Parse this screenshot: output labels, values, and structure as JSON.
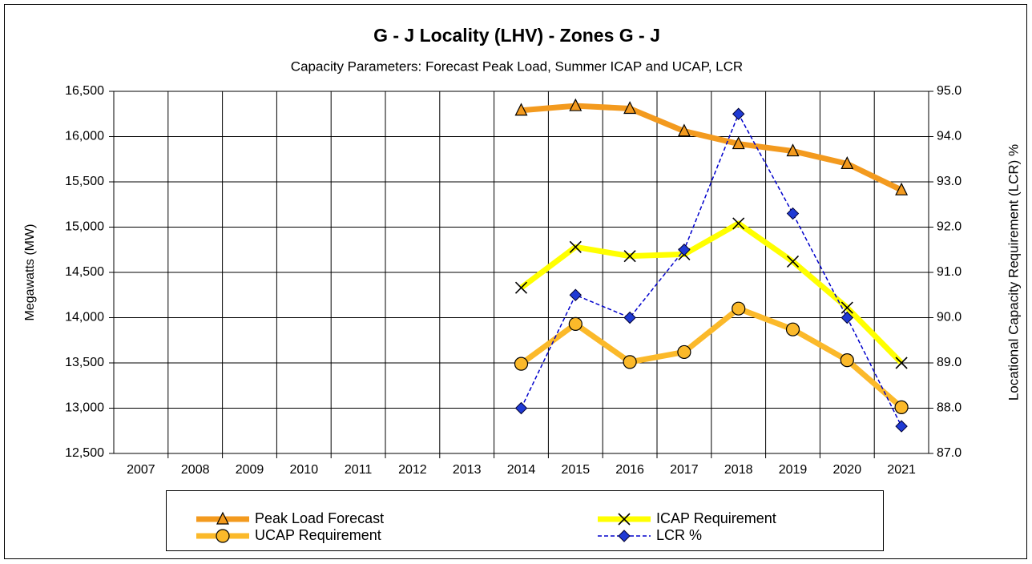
{
  "chart_data": {
    "type": "line",
    "title": "G - J Locality (LHV) - Zones G - J",
    "subtitle": "Capacity Parameters: Forecast Peak Load, Summer ICAP and UCAP, LCR",
    "y_label": "Megawatts (MW)",
    "y2_label": "Locational Capacity Requirement (LCR) %",
    "categories": [
      "2007",
      "2008",
      "2009",
      "2010",
      "2011",
      "2012",
      "2013",
      "2014",
      "2015",
      "2016",
      "2017",
      "2018",
      "2019",
      "2020",
      "2021"
    ],
    "series": [
      {
        "name": "Peak Load Forecast",
        "color": "#f39a1e",
        "marker": "triangle",
        "values": [
          null,
          null,
          null,
          null,
          null,
          null,
          null,
          16290,
          16340,
          16310,
          16060,
          15920,
          15840,
          15700,
          15410
        ]
      },
      {
        "name": "ICAP Requirement",
        "color": "#ffff00",
        "marker": "x",
        "values": [
          null,
          null,
          null,
          null,
          null,
          null,
          null,
          14330,
          14780,
          14680,
          14700,
          15040,
          14620,
          14110,
          13500
        ]
      },
      {
        "name": "UCAP Requirement",
        "color": "#fbb92a",
        "marker": "circle",
        "values": [
          null,
          null,
          null,
          null,
          null,
          null,
          null,
          13490,
          13930,
          13510,
          13620,
          14100,
          13870,
          13530,
          13010
        ]
      },
      {
        "name": "LCR %",
        "color": "#0000cc",
        "marker": "diamond",
        "dashed": true,
        "axis": "y2",
        "values": [
          null,
          null,
          null,
          null,
          null,
          null,
          null,
          88.0,
          90.5,
          90.0,
          91.5,
          94.5,
          92.3,
          90.0,
          87.6
        ]
      }
    ],
    "ylim": [
      12500,
      16500
    ],
    "yticks": [
      {
        "value": 12500,
        "label": "12,500"
      },
      {
        "value": 13000,
        "label": "13,000"
      },
      {
        "value": 13500,
        "label": "13,500"
      },
      {
        "value": 14000,
        "label": "14,000"
      },
      {
        "value": 14500,
        "label": "14,500"
      },
      {
        "value": 15000,
        "label": "15,000"
      },
      {
        "value": 15500,
        "label": "15,500"
      },
      {
        "value": 16000,
        "label": "16,000"
      },
      {
        "value": 16500,
        "label": "16,500"
      }
    ],
    "y2lim": [
      87,
      95
    ],
    "y2ticks": [
      {
        "value": 87,
        "label": "87.0"
      },
      {
        "value": 88,
        "label": "88.0"
      },
      {
        "value": 89,
        "label": "89.0"
      },
      {
        "value": 90,
        "label": "90.0"
      },
      {
        "value": 91,
        "label": "91.0"
      },
      {
        "value": 92,
        "label": "92.0"
      },
      {
        "value": 93,
        "label": "93.0"
      },
      {
        "value": 94,
        "label": "94.0"
      },
      {
        "value": 95,
        "label": "95.0"
      }
    ],
    "grid": true,
    "legend": "bottom"
  }
}
